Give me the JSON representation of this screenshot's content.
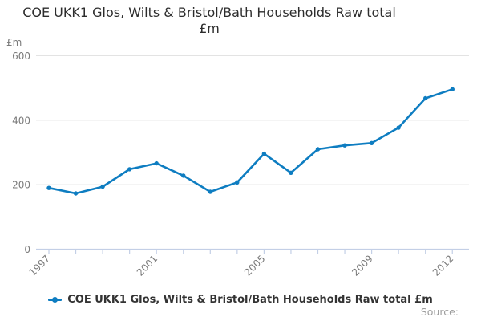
{
  "title": {
    "lines": [
      "COE UKK1 Glos, Wilts & Bristol/Bath Households Raw total",
      "£m"
    ]
  },
  "legend": {
    "label": "COE UKK1 Glos, Wilts & Bristol/Bath Households Raw total £m"
  },
  "footer": {
    "source_label": "Source:"
  },
  "colors": {
    "line": "#0e7dc1",
    "grid": "#e3e3e3",
    "axis": "#c3cfe6",
    "tick_text": "#7a7a7a",
    "title_text": "#2d2d2d",
    "legend_text": "#333333",
    "source_text": "#9c9c9c"
  },
  "chart_data": {
    "type": "line",
    "title": "COE UKK1 Glos, Wilts & Bristol/Bath Households Raw total £m",
    "series": [
      {
        "name": "COE UKK1 Glos, Wilts & Bristol/Bath Households Raw total £m",
        "values": [
          190,
          173,
          194,
          248,
          266,
          228,
          178,
          207,
          296,
          237,
          310,
          322,
          329,
          377,
          468,
          496
        ]
      }
    ],
    "x": [
      1997,
      1998,
      1999,
      2000,
      2001,
      2002,
      2003,
      2004,
      2005,
      2006,
      2007,
      2008,
      2009,
      2010,
      2011,
      2012
    ],
    "x_labeled_ticks": [
      "1997",
      "2001",
      "2005",
      "2009",
      "2012"
    ],
    "xlabel": "",
    "ylabel": "£m",
    "ylim": [
      0,
      600
    ],
    "y_ticks": [
      0,
      200,
      400,
      600
    ],
    "grid": "horizontal",
    "legend_position": "bottom",
    "markers": true
  }
}
